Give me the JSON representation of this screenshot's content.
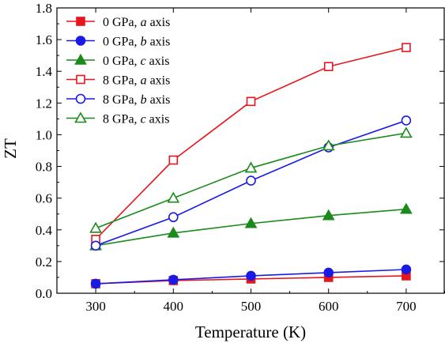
{
  "chart_data": {
    "type": "line",
    "title": "",
    "xlabel": "Temperature (K)",
    "ylabel": "ZT",
    "xlim": [
      250,
      750
    ],
    "ylim": [
      0.0,
      1.8
    ],
    "xticks": [
      300,
      400,
      500,
      600,
      700
    ],
    "yticks": [
      0.0,
      0.2,
      0.4,
      0.6,
      0.8,
      1.0,
      1.2,
      1.4,
      1.6,
      1.8
    ],
    "xtick_labels": [
      "300",
      "400",
      "500",
      "600",
      "700"
    ],
    "ytick_labels": [
      "0.0",
      "0.2",
      "0.4",
      "0.6",
      "0.8",
      "1.0",
      "1.2",
      "1.4",
      "1.6",
      "1.8"
    ],
    "x": [
      300,
      400,
      500,
      600,
      700
    ],
    "grid": false,
    "legend_position": "top-left",
    "series": [
      {
        "pressure": "0 GPa,",
        "axis_letter": "a",
        "axis_word": " axis",
        "color": "#e8151b",
        "marker": "square",
        "filled": true,
        "values": [
          0.06,
          0.08,
          0.09,
          0.1,
          0.11
        ]
      },
      {
        "pressure": "0 GPa,",
        "axis_letter": "b",
        "axis_word": " axis",
        "color": "#1a1ae6",
        "marker": "circle",
        "filled": true,
        "values": [
          0.06,
          0.085,
          0.11,
          0.13,
          0.15
        ]
      },
      {
        "pressure": "0 GPa,",
        "axis_letter": "c",
        "axis_word": " axis",
        "color": "#1a8a1a",
        "marker": "triangle",
        "filled": true,
        "values": [
          0.3,
          0.38,
          0.44,
          0.49,
          0.53
        ]
      },
      {
        "pressure": "8 GPa,",
        "axis_letter": "a",
        "axis_word": " axis",
        "color": "#e8151b",
        "marker": "square",
        "filled": false,
        "values": [
          0.34,
          0.84,
          1.21,
          1.43,
          1.55
        ]
      },
      {
        "pressure": "8 GPa,",
        "axis_letter": "b",
        "axis_word": " axis",
        "color": "#1a1ae6",
        "marker": "circle",
        "filled": false,
        "values": [
          0.3,
          0.48,
          0.71,
          0.92,
          1.09
        ]
      },
      {
        "pressure": "8 GPa,",
        "axis_letter": "c",
        "axis_word": " axis",
        "color": "#1a8a1a",
        "marker": "triangle",
        "filled": false,
        "values": [
          0.41,
          0.6,
          0.79,
          0.93,
          1.01
        ]
      }
    ]
  }
}
